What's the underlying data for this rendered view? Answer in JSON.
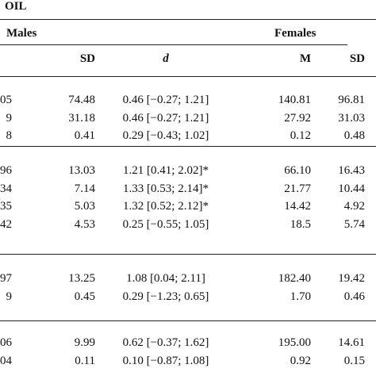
{
  "group_title": "OIL",
  "headers": {
    "males": "Males",
    "females": "Females",
    "col_m_cut": "",
    "col_sd": "SD",
    "col_d": "d",
    "col_m": "M",
    "col_sd2": "SD"
  },
  "sections": [
    {
      "rows": [
        {
          "m": "05",
          "sd": "74.48",
          "d": "0.46 [−0.27; 1.21]",
          "fm": "140.81",
          "fsd": "96.81"
        },
        {
          "m": "9",
          "sd": "31.18",
          "d": "0.46 [−0.27; 1.21]",
          "fm": "27.92",
          "fsd": "31.03"
        },
        {
          "m": "8",
          "sd": "0.41",
          "d": "0.29 [−0.43; 1.02]",
          "fm": "0.12",
          "fsd": "0.48"
        }
      ]
    },
    {
      "rows": [
        {
          "m": "96",
          "sd": "13.03",
          "d": "1.21 [0.41; 2.02]*",
          "fm": "66.10",
          "fsd": "16.43"
        },
        {
          "m": "34",
          "sd": "7.14",
          "d": "1.33 [0.53; 2.14]*",
          "fm": "21.77",
          "fsd": "10.44"
        },
        {
          "m": "35",
          "sd": "5.03",
          "d": "1.32 [0.52; 2.12]*",
          "fm": "14.42",
          "fsd": "4.92"
        },
        {
          "m": "42",
          "sd": "4.53",
          "d": "0.25 [−0.55; 1.05]",
          "fm": "18.5",
          "fsd": "5.74"
        }
      ]
    },
    {
      "rows": [
        {
          "m": "97",
          "sd": "13.25",
          "d": "1.08 [0.04; 2.11]",
          "fm": "182.40",
          "fsd": "19.42"
        },
        {
          "m": "9",
          "sd": "0.45",
          "d": "0.29 [−1.23; 0.65]",
          "fm": "1.70",
          "fsd": "0.46"
        }
      ]
    },
    {
      "rows": [
        {
          "m": "06",
          "sd": "9.99",
          "d": "0.62 [−0.37; 1.62]",
          "fm": "195.00",
          "fsd": "14.61"
        },
        {
          "m": "04",
          "sd": "0.11",
          "d": "0.10 [−0.87; 1.08]",
          "fm": "0.92",
          "fsd": "0.15"
        }
      ]
    }
  ]
}
